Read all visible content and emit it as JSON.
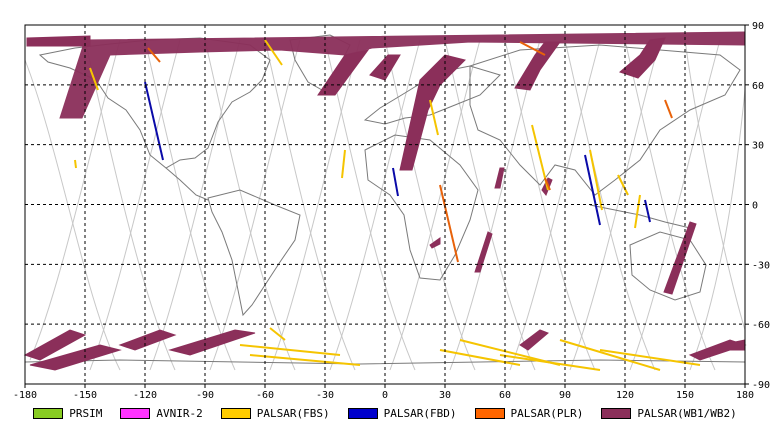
{
  "map": {
    "x_ticks": [
      -180,
      -150,
      -120,
      -90,
      -60,
      -30,
      0,
      30,
      60,
      90,
      120,
      150,
      180
    ],
    "y_ticks": [
      90,
      60,
      30,
      0,
      -30,
      -60,
      -90
    ],
    "x_tick_labels": [
      "-180",
      "-150",
      "-120",
      "-90",
      "-60",
      "-30",
      "0",
      "30",
      "60",
      "90",
      "120",
      "150",
      "180"
    ],
    "y_tick_labels": [
      "90",
      "60",
      "30",
      "0",
      "-30",
      "-60",
      "-90"
    ],
    "grid": true,
    "colors": {
      "coast": "#7a7a7a",
      "orbit": "#c8c8c8",
      "grid": "#000000",
      "wide": "#8b2f5a",
      "fbs": "#f5c400",
      "fbd": "#0a0aa8",
      "plr": "#e8620a"
    }
  },
  "legend": [
    {
      "label": "PRSIM",
      "color": "#88cc22"
    },
    {
      "label": "AVNIR-2",
      "color": "#ff33ff"
    },
    {
      "label": "PALSAR(FBS)",
      "color": "#ffcc00"
    },
    {
      "label": "PALSAR(FBD)",
      "color": "#0000cc"
    },
    {
      "label": "PALSAR(PLR)",
      "color": "#ff6600"
    },
    {
      "label": "PALSAR(WB1/WB2)",
      "color": "#8b2f5a"
    }
  ]
}
